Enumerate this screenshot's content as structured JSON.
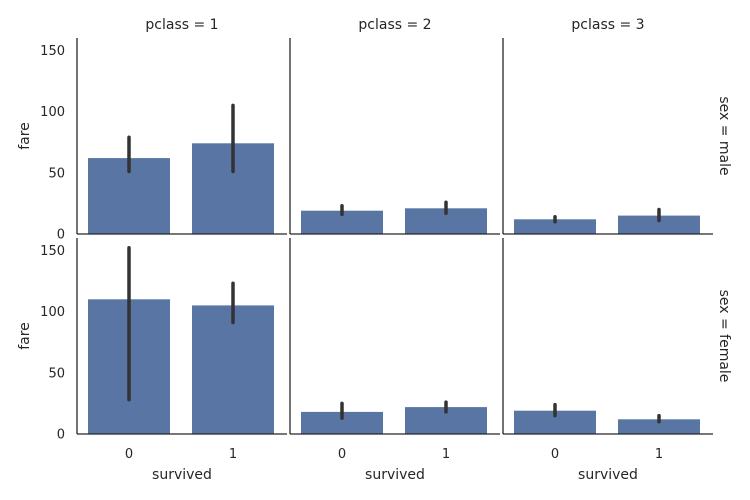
{
  "chart_data": {
    "type": "bar",
    "facet_cols": [
      "pclass = 1",
      "pclass = 2",
      "pclass = 3"
    ],
    "facet_rows": [
      "sex = male",
      "sex = female"
    ],
    "categories": [
      "0",
      "1"
    ],
    "xlabel": "survived",
    "ylabel": "fare",
    "ylim": [
      0,
      160
    ],
    "yticks": [
      "0",
      "50",
      "100",
      "150"
    ],
    "bar_color": "#5875a4",
    "error_color": "#333333",
    "panels": [
      {
        "row": "sex = male",
        "col": "pclass = 1",
        "values": [
          62,
          74
        ],
        "ci": [
          [
            51,
            79
          ],
          [
            51,
            105
          ]
        ]
      },
      {
        "row": "sex = male",
        "col": "pclass = 2",
        "values": [
          19,
          21
        ],
        "ci": [
          [
            16,
            23
          ],
          [
            17,
            26
          ]
        ]
      },
      {
        "row": "sex = male",
        "col": "pclass = 3",
        "values": [
          12,
          15
        ],
        "ci": [
          [
            10,
            14
          ],
          [
            11,
            20
          ]
        ]
      },
      {
        "row": "sex = female",
        "col": "pclass = 1",
        "values": [
          110,
          105
        ],
        "ci": [
          [
            28,
            152
          ],
          [
            91,
            123
          ]
        ]
      },
      {
        "row": "sex = female",
        "col": "pclass = 2",
        "values": [
          18,
          22
        ],
        "ci": [
          [
            13,
            25
          ],
          [
            18,
            26
          ]
        ]
      },
      {
        "row": "sex = female",
        "col": "pclass = 3",
        "values": [
          19,
          12
        ],
        "ci": [
          [
            15,
            24
          ],
          [
            10,
            15
          ]
        ]
      }
    ]
  }
}
